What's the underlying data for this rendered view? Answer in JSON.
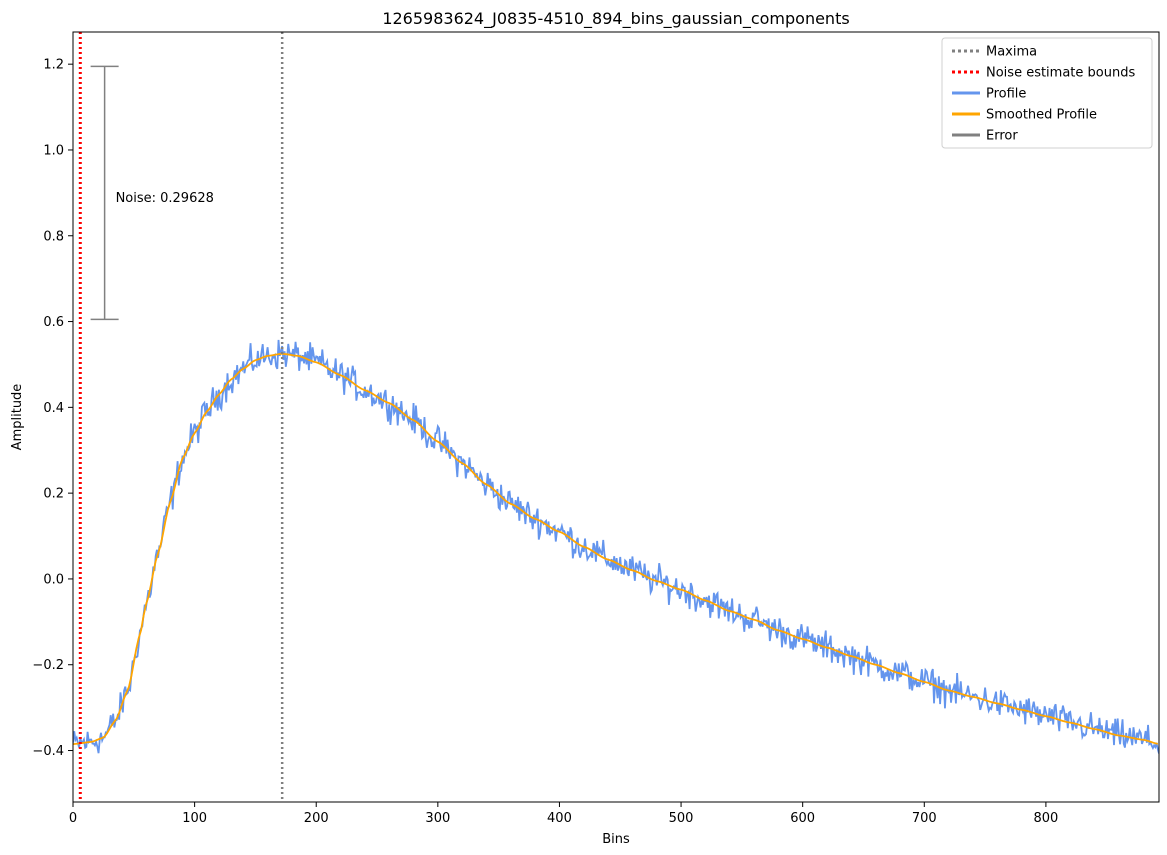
{
  "chart_data": {
    "type": "line",
    "title": "1265983624_J0835-4510_894_bins_gaussian_components",
    "xlabel": "Bins",
    "ylabel": "Amplitude",
    "xlim": [
      0,
      893
    ],
    "ylim": [
      -0.52,
      1.275
    ],
    "xticks": [
      0,
      100,
      200,
      300,
      400,
      500,
      600,
      700,
      800
    ],
    "yticks": [
      -0.4,
      -0.2,
      0.0,
      0.2,
      0.4,
      0.6,
      0.8,
      1.0,
      1.2
    ],
    "ytick_labels": [
      "−0.4",
      "−0.2",
      "0.0",
      "0.2",
      "0.4",
      "0.6",
      "0.8",
      "1.0",
      "1.2"
    ],
    "xtick_labels": [
      "0",
      "100",
      "200",
      "300",
      "400",
      "500",
      "600",
      "700",
      "800"
    ],
    "smoothed_profile_points": [
      [
        0,
        -0.385
      ],
      [
        15,
        -0.38
      ],
      [
        25,
        -0.37
      ],
      [
        35,
        -0.33
      ],
      [
        45,
        -0.26
      ],
      [
        55,
        -0.13
      ],
      [
        60,
        -0.06
      ],
      [
        70,
        0.06
      ],
      [
        80,
        0.18
      ],
      [
        90,
        0.28
      ],
      [
        100,
        0.34
      ],
      [
        110,
        0.39
      ],
      [
        120,
        0.43
      ],
      [
        130,
        0.465
      ],
      [
        140,
        0.49
      ],
      [
        150,
        0.51
      ],
      [
        160,
        0.52
      ],
      [
        172,
        0.525
      ],
      [
        185,
        0.52
      ],
      [
        200,
        0.505
      ],
      [
        220,
        0.475
      ],
      [
        240,
        0.44
      ],
      [
        260,
        0.41
      ],
      [
        280,
        0.37
      ],
      [
        300,
        0.32
      ],
      [
        320,
        0.27
      ],
      [
        340,
        0.22
      ],
      [
        360,
        0.175
      ],
      [
        380,
        0.14
      ],
      [
        400,
        0.11
      ],
      [
        420,
        0.075
      ],
      [
        440,
        0.045
      ],
      [
        460,
        0.02
      ],
      [
        480,
        -0.005
      ],
      [
        500,
        -0.025
      ],
      [
        520,
        -0.05
      ],
      [
        540,
        -0.075
      ],
      [
        560,
        -0.095
      ],
      [
        580,
        -0.12
      ],
      [
        600,
        -0.14
      ],
      [
        620,
        -0.16
      ],
      [
        640,
        -0.18
      ],
      [
        660,
        -0.2
      ],
      [
        680,
        -0.22
      ],
      [
        700,
        -0.24
      ],
      [
        720,
        -0.26
      ],
      [
        740,
        -0.275
      ],
      [
        760,
        -0.29
      ],
      [
        780,
        -0.305
      ],
      [
        800,
        -0.32
      ],
      [
        820,
        -0.335
      ],
      [
        840,
        -0.35
      ],
      [
        860,
        -0.365
      ],
      [
        880,
        -0.375
      ],
      [
        893,
        -0.385
      ]
    ],
    "profile_noise_sigma": 0.025,
    "maxima": [
      172
    ],
    "noise_estimate_bounds": [
      6
    ],
    "error_bar": {
      "x": 26,
      "y_low": 0.605,
      "y_high": 1.195
    },
    "noise_annotation": "Noise: 0.29628",
    "noise_annotation_pos": {
      "x": 35,
      "y": 0.89
    },
    "legend": {
      "placement": "top-right",
      "entries": [
        {
          "label": "Maxima",
          "color": "#808080",
          "style": "dotted"
        },
        {
          "label": "Noise estimate bounds",
          "color": "#ff0000",
          "style": "dotted"
        },
        {
          "label": "Profile",
          "color": "#6495ed",
          "style": "solid"
        },
        {
          "label": "Smoothed Profile",
          "color": "#ffa500",
          "style": "solid"
        },
        {
          "label": "Error",
          "color": "#808080",
          "style": "solid"
        }
      ]
    },
    "colors": {
      "profile": "#6495ed",
      "smoothed": "#ffa500",
      "maxima": "#808080",
      "noise_bounds": "#ff0000",
      "error": "#808080"
    }
  }
}
